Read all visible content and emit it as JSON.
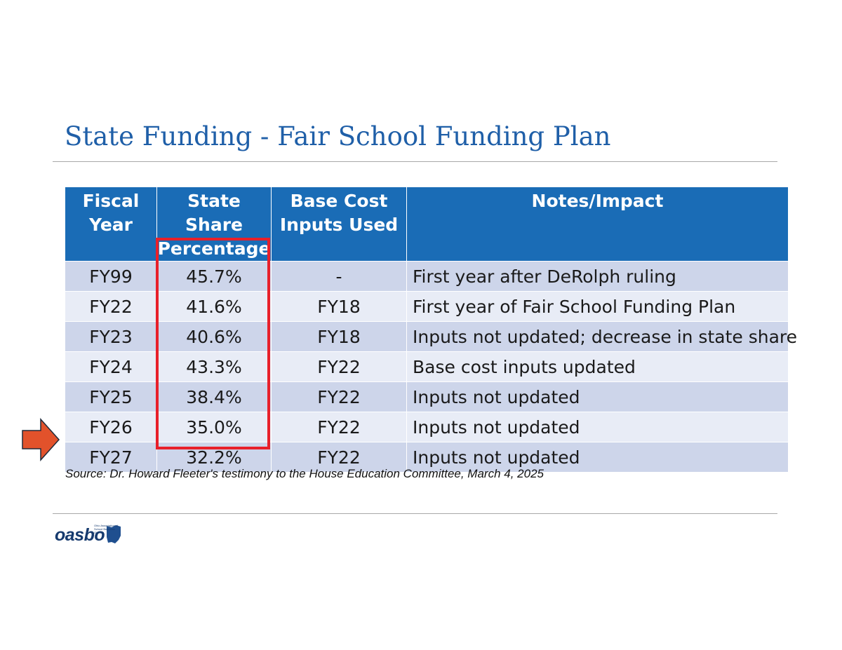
{
  "title": "State Funding - Fair School Funding Plan",
  "table": {
    "headers": [
      [
        "Fiscal",
        "Year"
      ],
      [
        "State Share",
        "Percentage"
      ],
      [
        "Base Cost",
        "Inputs Used"
      ],
      [
        "Notes/Impact",
        ""
      ]
    ],
    "rows": [
      {
        "year": "FY99",
        "share": "45.7%",
        "inputs": "-",
        "notes": "First year after DeRolph ruling"
      },
      {
        "year": "FY22",
        "share": "41.6%",
        "inputs": "FY18",
        "notes": "First year of Fair School Funding Plan"
      },
      {
        "year": "FY23",
        "share": "40.6%",
        "inputs": "FY18",
        "notes": "Inputs not updated; decrease in state share"
      },
      {
        "year": "FY24",
        "share": "43.3%",
        "inputs": "FY22",
        "notes": "Base cost inputs updated"
      },
      {
        "year": "FY25",
        "share": "38.4%",
        "inputs": "FY22",
        "notes": "Inputs not updated"
      },
      {
        "year": "FY26",
        "share": "35.0%",
        "inputs": "FY22",
        "notes": "Inputs not updated"
      },
      {
        "year": "FY27",
        "share": "32.2%",
        "inputs": "FY22",
        "notes": "Inputs not updated"
      }
    ]
  },
  "source": "Source: Dr. Howard Fleeter's testimony to the House Education Committee, March 4, 2025",
  "logo": {
    "word": "oasbo",
    "tagline": "Ohio Association of School Business Officials"
  },
  "colors": {
    "title": "#1f5fa8",
    "header_bg": "#1a6cb6",
    "row_dark": "#cdd5ea",
    "row_light": "#e8ecf6",
    "highlight": "#e8202a",
    "arrow": "#e2522b"
  }
}
